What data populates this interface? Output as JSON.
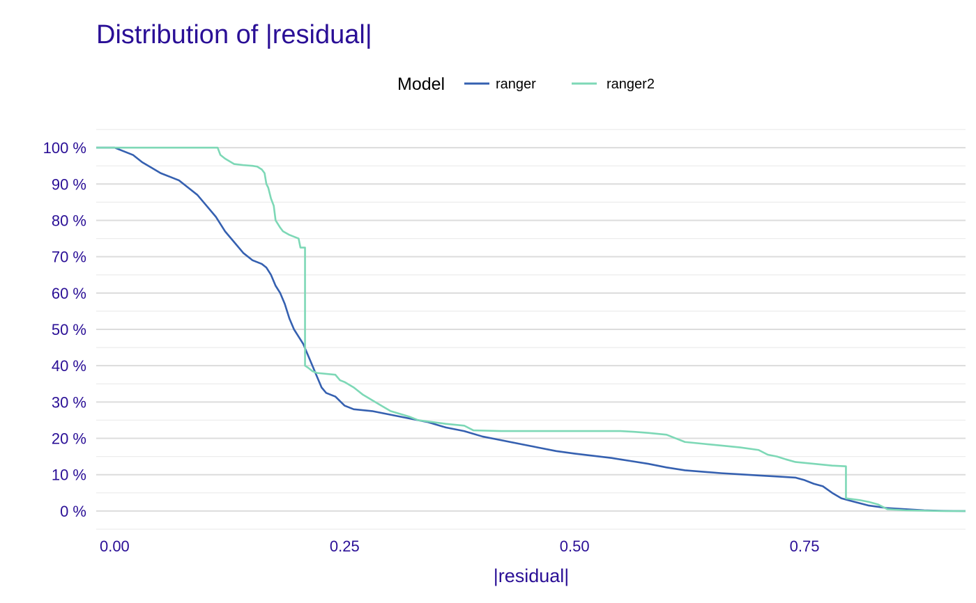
{
  "chart_data": {
    "type": "line",
    "title": "Distribution of |residual|",
    "xlabel": "|residual|",
    "ylabel": "",
    "xlim": [
      -0.02,
      0.925
    ],
    "ylim": [
      -5,
      105
    ],
    "x_ticks": [
      0.0,
      0.25,
      0.5,
      0.75
    ],
    "x_tick_labels": [
      "0.00",
      "0.25",
      "0.50",
      "0.75"
    ],
    "y_ticks": [
      0,
      10,
      20,
      30,
      40,
      50,
      60,
      70,
      80,
      90,
      100
    ],
    "y_tick_labels": [
      "0 %",
      "10 %",
      "20 %",
      "30 %",
      "40 %",
      "50 %",
      "60 %",
      "70 %",
      "80 %",
      "90 %",
      "100 %"
    ],
    "grid": true,
    "legend": {
      "title": "Model",
      "position": "top"
    },
    "series": [
      {
        "name": "ranger",
        "color": "#3560b0",
        "points": [
          [
            -0.02,
            100
          ],
          [
            0.0,
            100
          ],
          [
            0.01,
            99
          ],
          [
            0.02,
            98
          ],
          [
            0.03,
            96
          ],
          [
            0.04,
            94.5
          ],
          [
            0.05,
            93
          ],
          [
            0.06,
            92
          ],
          [
            0.07,
            91
          ],
          [
            0.08,
            89
          ],
          [
            0.09,
            87
          ],
          [
            0.1,
            84
          ],
          [
            0.11,
            81
          ],
          [
            0.12,
            77
          ],
          [
            0.13,
            74
          ],
          [
            0.14,
            71
          ],
          [
            0.15,
            69
          ],
          [
            0.16,
            68
          ],
          [
            0.165,
            67
          ],
          [
            0.17,
            65
          ],
          [
            0.175,
            62
          ],
          [
            0.18,
            60
          ],
          [
            0.185,
            57
          ],
          [
            0.19,
            53
          ],
          [
            0.195,
            50
          ],
          [
            0.2,
            48
          ],
          [
            0.205,
            46
          ],
          [
            0.21,
            43
          ],
          [
            0.215,
            40
          ],
          [
            0.22,
            37
          ],
          [
            0.225,
            34
          ],
          [
            0.23,
            32.5
          ],
          [
            0.24,
            31.5
          ],
          [
            0.25,
            29
          ],
          [
            0.26,
            28
          ],
          [
            0.28,
            27.5
          ],
          [
            0.3,
            26.5
          ],
          [
            0.32,
            25.5
          ],
          [
            0.34,
            24.5
          ],
          [
            0.36,
            23
          ],
          [
            0.38,
            22
          ],
          [
            0.4,
            20.5
          ],
          [
            0.42,
            19.5
          ],
          [
            0.44,
            18.5
          ],
          [
            0.46,
            17.5
          ],
          [
            0.48,
            16.5
          ],
          [
            0.5,
            15.8
          ],
          [
            0.52,
            15.2
          ],
          [
            0.54,
            14.6
          ],
          [
            0.56,
            13.8
          ],
          [
            0.58,
            13
          ],
          [
            0.6,
            12
          ],
          [
            0.62,
            11.2
          ],
          [
            0.64,
            10.8
          ],
          [
            0.66,
            10.4
          ],
          [
            0.68,
            10.1
          ],
          [
            0.7,
            9.8
          ],
          [
            0.72,
            9.5
          ],
          [
            0.74,
            9.2
          ],
          [
            0.75,
            8.5
          ],
          [
            0.76,
            7.5
          ],
          [
            0.77,
            6.8
          ],
          [
            0.78,
            5
          ],
          [
            0.79,
            3.5
          ],
          [
            0.8,
            2.8
          ],
          [
            0.82,
            1.5
          ],
          [
            0.84,
            0.8
          ],
          [
            0.86,
            0.5
          ],
          [
            0.88,
            0.2
          ],
          [
            0.9,
            0.05
          ],
          [
            0.925,
            0
          ]
        ]
      },
      {
        "name": "ranger2",
        "color": "#7dd8b6",
        "points": [
          [
            -0.02,
            100
          ],
          [
            0.112,
            100
          ],
          [
            0.115,
            98
          ],
          [
            0.12,
            97
          ],
          [
            0.13,
            95.5
          ],
          [
            0.14,
            95.2
          ],
          [
            0.15,
            95
          ],
          [
            0.155,
            94.8
          ],
          [
            0.16,
            94
          ],
          [
            0.163,
            93
          ],
          [
            0.165,
            90
          ],
          [
            0.167,
            89
          ],
          [
            0.17,
            86
          ],
          [
            0.173,
            84
          ],
          [
            0.175,
            80
          ],
          [
            0.18,
            78
          ],
          [
            0.183,
            77
          ],
          [
            0.19,
            76
          ],
          [
            0.2,
            75
          ],
          [
            0.202,
            72.5
          ],
          [
            0.207,
            72.5
          ],
          [
            0.207,
            40
          ],
          [
            0.21,
            39.5
          ],
          [
            0.215,
            38.5
          ],
          [
            0.22,
            38
          ],
          [
            0.24,
            37.5
          ],
          [
            0.245,
            36
          ],
          [
            0.25,
            35.5
          ],
          [
            0.26,
            34
          ],
          [
            0.27,
            32
          ],
          [
            0.28,
            30.5
          ],
          [
            0.29,
            29
          ],
          [
            0.3,
            27.5
          ],
          [
            0.32,
            26
          ],
          [
            0.33,
            25
          ],
          [
            0.36,
            24
          ],
          [
            0.38,
            23.5
          ],
          [
            0.39,
            22.2
          ],
          [
            0.42,
            22
          ],
          [
            0.5,
            22
          ],
          [
            0.55,
            22
          ],
          [
            0.565,
            21.8
          ],
          [
            0.58,
            21.5
          ],
          [
            0.6,
            21
          ],
          [
            0.61,
            20
          ],
          [
            0.62,
            19
          ],
          [
            0.64,
            18.5
          ],
          [
            0.66,
            18
          ],
          [
            0.68,
            17.5
          ],
          [
            0.7,
            16.8
          ],
          [
            0.71,
            15.5
          ],
          [
            0.72,
            15
          ],
          [
            0.73,
            14.2
          ],
          [
            0.74,
            13.5
          ],
          [
            0.76,
            13
          ],
          [
            0.78,
            12.5
          ],
          [
            0.795,
            12.3
          ],
          [
            0.795,
            3.5
          ],
          [
            0.81,
            3
          ],
          [
            0.82,
            2.5
          ],
          [
            0.83,
            1.8
          ],
          [
            0.84,
            0.5
          ],
          [
            0.86,
            0.2
          ],
          [
            0.9,
            0
          ],
          [
            0.925,
            0
          ]
        ]
      }
    ]
  }
}
